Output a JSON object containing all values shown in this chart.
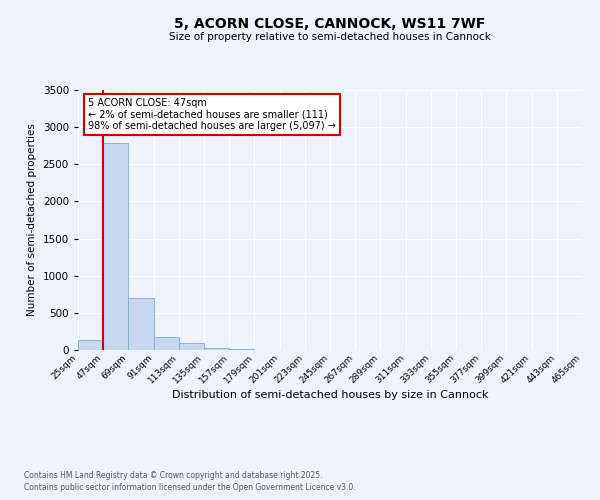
{
  "title": "5, ACORN CLOSE, CANNOCK, WS11 7WF",
  "subtitle": "Size of property relative to semi-detached houses in Cannock",
  "xlabel": "Distribution of semi-detached houses by size in Cannock",
  "ylabel": "Number of semi-detached properties",
  "bar_color": "#c5d8f0",
  "bar_edge_color": "#7aadd4",
  "annotation_box_color": "#ffffff",
  "annotation_border_color": "#cc0000",
  "property_line_color": "#cc0000",
  "annotation_title": "5 ACORN CLOSE: 47sqm",
  "annotation_line1": "← 2% of semi-detached houses are smaller (111)",
  "annotation_line2": "98% of semi-detached houses are larger (5,097) →",
  "property_sqm": 47,
  "bins": [
    25,
    47,
    69,
    91,
    113,
    135,
    157,
    179,
    201,
    223,
    245,
    267,
    289,
    311,
    333,
    355,
    377,
    399,
    421,
    443,
    465
  ],
  "counts": [
    140,
    2780,
    700,
    175,
    95,
    30,
    20,
    0,
    0,
    0,
    0,
    0,
    0,
    0,
    0,
    0,
    0,
    0,
    0,
    0
  ],
  "ylim": [
    0,
    3500
  ],
  "yticks": [
    0,
    500,
    1000,
    1500,
    2000,
    2500,
    3000,
    3500
  ],
  "background_color": "#eef2fa",
  "grid_color": "#ffffff",
  "footer1": "Contains HM Land Registry data © Crown copyright and database right 2025.",
  "footer2": "Contains public sector information licensed under the Open Government Licence v3.0."
}
